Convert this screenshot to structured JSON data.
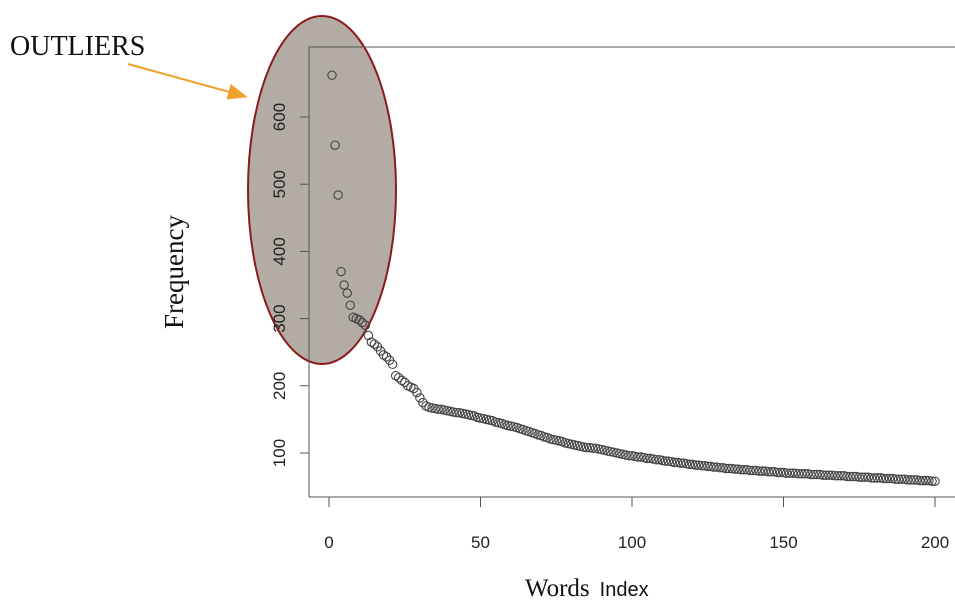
{
  "chart_data": {
    "type": "scatter",
    "ylabel": "Frequency",
    "xlabel_main": "Words",
    "xlabel_sub": "Index",
    "annotation": "OUTLIERS",
    "x_ticks": [
      0,
      50,
      100,
      150,
      200
    ],
    "y_ticks": [
      100,
      200,
      300,
      400,
      500,
      600
    ],
    "xlim": [
      -6,
      204
    ],
    "ylim": [
      30,
      690
    ],
    "grid": false,
    "outlier_highlight_color": "#b3aca4",
    "outlier_outline_color": "#8b1a1a",
    "arrow_color": "#f0a030",
    "point_color": "#444444",
    "x": [
      1,
      2,
      3,
      4,
      5,
      6,
      7,
      8,
      9,
      10,
      11,
      12,
      13,
      14,
      15,
      16,
      17,
      18,
      19,
      20,
      21,
      22,
      23,
      24,
      25,
      26,
      27,
      28,
      29,
      30,
      31,
      32,
      33,
      34,
      35,
      36,
      37,
      38,
      39,
      40,
      41,
      42,
      43,
      44,
      45,
      46,
      47,
      48,
      49,
      50,
      51,
      52,
      53,
      54,
      55,
      56,
      57,
      58,
      59,
      60,
      61,
      62,
      63,
      64,
      65,
      66,
      67,
      68,
      69,
      70,
      71,
      72,
      73,
      74,
      75,
      76,
      77,
      78,
      79,
      80,
      81,
      82,
      83,
      84,
      85,
      86,
      87,
      88,
      89,
      90,
      91,
      92,
      93,
      94,
      95,
      96,
      97,
      98,
      99,
      100,
      101,
      102,
      103,
      104,
      105,
      106,
      107,
      108,
      109,
      110,
      111,
      112,
      113,
      114,
      115,
      116,
      117,
      118,
      119,
      120,
      121,
      122,
      123,
      124,
      125,
      126,
      127,
      128,
      129,
      130,
      131,
      132,
      133,
      134,
      135,
      136,
      137,
      138,
      139,
      140,
      141,
      142,
      143,
      144,
      145,
      146,
      147,
      148,
      149,
      150,
      151,
      152,
      153,
      154,
      155,
      156,
      157,
      158,
      159,
      160,
      161,
      162,
      163,
      164,
      165,
      166,
      167,
      168,
      169,
      170,
      171,
      172,
      173,
      174,
      175,
      176,
      177,
      178,
      179,
      180,
      181,
      182,
      183,
      184,
      185,
      186,
      187,
      188,
      189,
      190,
      191,
      192,
      193,
      194,
      195,
      196,
      197,
      198,
      199,
      200
    ],
    "values": [
      662,
      558,
      484,
      370,
      350,
      338,
      320,
      302,
      300,
      298,
      294,
      290,
      275,
      265,
      262,
      258,
      252,
      246,
      243,
      238,
      232,
      215,
      212,
      208,
      205,
      200,
      198,
      196,
      190,
      182,
      175,
      170,
      168,
      167,
      166,
      165,
      165,
      164,
      163,
      162,
      161,
      160,
      160,
      159,
      158,
      157,
      156,
      155,
      153,
      152,
      151,
      150,
      149,
      148,
      146,
      145,
      144,
      142,
      141,
      140,
      139,
      138,
      136,
      135,
      133,
      132,
      130,
      129,
      127,
      126,
      124,
      123,
      121,
      120,
      119,
      118,
      117,
      115,
      114,
      113,
      112,
      111,
      110,
      109,
      108,
      108,
      107,
      107,
      106,
      105,
      104,
      103,
      102,
      101,
      100,
      99,
      98,
      97,
      96,
      96,
      95,
      94,
      94,
      93,
      92,
      92,
      91,
      90,
      90,
      89,
      88,
      88,
      87,
      86,
      86,
      85,
      85,
      84,
      83,
      83,
      82,
      82,
      81,
      81,
      80,
      80,
      79,
      79,
      78,
      78,
      77,
      77,
      77,
      76,
      76,
      75,
      75,
      75,
      74,
      74,
      74,
      73,
      73,
      73,
      72,
      72,
      72,
      71,
      71,
      71,
      70,
      70,
      70,
      70,
      69,
      69,
      69,
      69,
      68,
      68,
      68,
      68,
      67,
      67,
      67,
      67,
      66,
      66,
      66,
      66,
      65,
      65,
      65,
      65,
      64,
      64,
      64,
      64,
      63,
      63,
      63,
      63,
      62,
      62,
      62,
      62,
      61,
      61,
      61,
      61,
      60,
      60,
      60,
      60,
      59,
      59,
      59,
      59,
      58,
      58
    ]
  }
}
